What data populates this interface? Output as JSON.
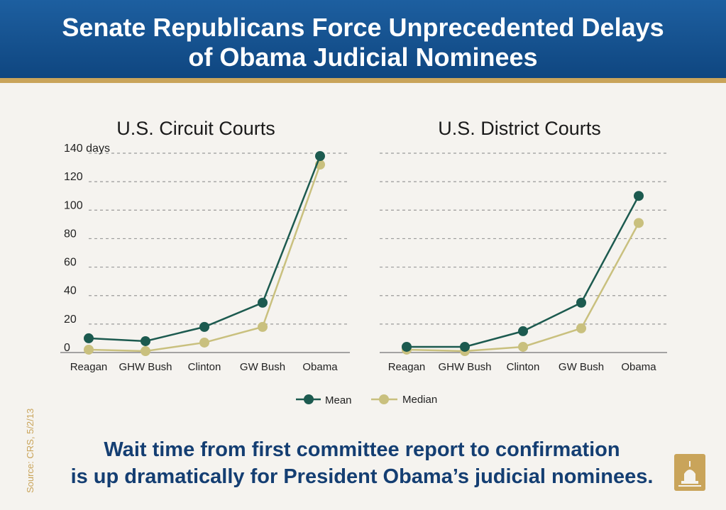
{
  "header": {
    "title_line1": "Senate Republicans Force Unprecedented Delays",
    "title_line2": "of Obama Judicial Nominees"
  },
  "colors": {
    "header_blue": "#1a5a99",
    "gold": "#c9a45a",
    "mean": "#1c5a4f",
    "median": "#c9c07e",
    "caption": "#143e72"
  },
  "chart_data": [
    {
      "type": "line",
      "title": "U.S. Circuit Courts",
      "categories": [
        "Reagan",
        "GHW Bush",
        "Clinton",
        "GW Bush",
        "Obama"
      ],
      "series": [
        {
          "name": "Mean",
          "values": [
            10,
            8,
            18,
            35,
            138
          ]
        },
        {
          "name": "Median",
          "values": [
            2,
            1,
            7,
            18,
            132
          ]
        }
      ],
      "yticks": [
        "0",
        "20",
        "40",
        "60",
        "80",
        "100",
        "120",
        "140 days"
      ],
      "ylim": [
        0,
        140
      ]
    },
    {
      "type": "line",
      "title": "U.S. District Courts",
      "categories": [
        "Reagan",
        "GHW Bush",
        "Clinton",
        "GW Bush",
        "Obama"
      ],
      "series": [
        {
          "name": "Mean",
          "values": [
            4,
            4,
            15,
            35,
            110
          ]
        },
        {
          "name": "Median",
          "values": [
            2,
            1,
            4,
            17,
            91
          ]
        }
      ],
      "ylim": [
        0,
        140
      ]
    }
  ],
  "legend": {
    "mean_label": "Mean",
    "median_label": "Median"
  },
  "caption": {
    "line1": "Wait time from first committee report to confirmation",
    "line2": "is up dramatically for President Obama’s judicial nominees."
  },
  "source": "Source: CRS, 5/2/13"
}
